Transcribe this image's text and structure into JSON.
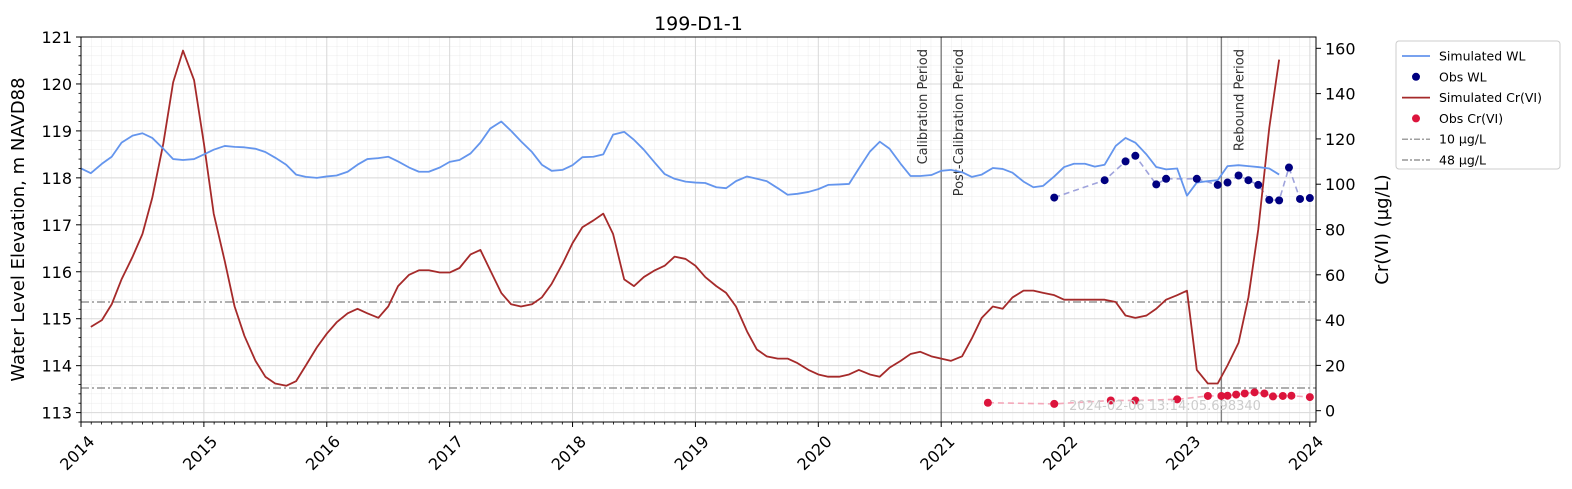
{
  "chart_data": {
    "type": "line",
    "title": "199-D1-1",
    "ylabel": "Water Level Elevation, m NAVD88",
    "y2label": "Cr(VI) (µg/L)",
    "xlim": [
      2014.0,
      2024.05
    ],
    "ylim": [
      112.8,
      121.0
    ],
    "y2lim": [
      -5,
      165
    ],
    "xticks": [
      2014,
      2015,
      2016,
      2017,
      2018,
      2019,
      2020,
      2021,
      2022,
      2023,
      2024
    ],
    "yticks": [
      113,
      114,
      115,
      116,
      117,
      118,
      119,
      120,
      121
    ],
    "y2ticks": [
      0,
      20,
      40,
      60,
      80,
      100,
      120,
      140,
      160
    ],
    "colors": {
      "sim_wl": "#6495ED",
      "obs_wl": "#000080",
      "sim_cr": "#A52A2A",
      "obs_cr": "#DC143C",
      "obs_wl_link": "#9FA3DC",
      "obs_cr_link": "#F4A8BA",
      "ref_line": "#808080",
      "period_line": "#808080"
    },
    "period_lines": [
      {
        "x": 2021.0,
        "label": "Calibration Period",
        "side": "left"
      },
      {
        "x": 2021.0,
        "label": "Post-Calibration Period",
        "side": "right"
      },
      {
        "x": 2023.28,
        "label": "Rebound Period",
        "side": "right"
      }
    ],
    "reference_lines": [
      {
        "value": 10,
        "label": "10 µg/L"
      },
      {
        "value": 48,
        "label": "48 µg/L"
      }
    ],
    "watermark": "2024-02-06 13:14:05.698340",
    "legend": [
      "Simulated WL",
      "Obs WL",
      "Simulated Cr(VI)",
      "Obs Cr(VI)",
      "10 µg/L",
      "48 µg/L"
    ],
    "series": [
      {
        "name": "Simulated WL",
        "axis": "left",
        "x": [
          2014.0,
          2014.08,
          2014.17,
          2014.25,
          2014.33,
          2014.42,
          2014.5,
          2014.58,
          2014.67,
          2014.75,
          2014.83,
          2014.92,
          2015.0,
          2015.08,
          2015.17,
          2015.25,
          2015.33,
          2015.42,
          2015.5,
          2015.58,
          2015.67,
          2015.75,
          2015.83,
          2015.92,
          2016.0,
          2016.08,
          2016.17,
          2016.25,
          2016.33,
          2016.42,
          2016.5,
          2016.58,
          2016.67,
          2016.75,
          2016.83,
          2016.92,
          2017.0,
          2017.08,
          2017.17,
          2017.25,
          2017.33,
          2017.42,
          2017.5,
          2017.58,
          2017.67,
          2017.75,
          2017.83,
          2017.92,
          2018.0,
          2018.08,
          2018.17,
          2018.25,
          2018.33,
          2018.42,
          2018.5,
          2018.58,
          2018.67,
          2018.75,
          2018.83,
          2018.92,
          2019.0,
          2019.08,
          2019.17,
          2019.25,
          2019.33,
          2019.42,
          2019.5,
          2019.58,
          2019.67,
          2019.75,
          2019.83,
          2019.92,
          2020.0,
          2020.08,
          2020.17,
          2020.25,
          2020.33,
          2020.42,
          2020.5,
          2020.58,
          2020.67,
          2020.75,
          2020.83,
          2020.92,
          2021.0,
          2021.08,
          2021.17,
          2021.25,
          2021.33,
          2021.42,
          2021.5,
          2021.58,
          2021.67,
          2021.75,
          2021.83,
          2021.92,
          2022.0,
          2022.08,
          2022.17,
          2022.25,
          2022.33,
          2022.42,
          2022.5,
          2022.58,
          2022.67,
          2022.75,
          2022.83,
          2022.92,
          2023.0,
          2023.08,
          2023.17,
          2023.25,
          2023.33,
          2023.42,
          2023.5,
          2023.58,
          2023.67,
          2023.75
        ],
        "values": [
          118.2,
          118.1,
          118.3,
          118.45,
          118.75,
          118.9,
          118.95,
          118.85,
          118.62,
          118.4,
          118.38,
          118.4,
          118.5,
          118.6,
          118.68,
          118.66,
          118.65,
          118.62,
          118.55,
          118.43,
          118.28,
          118.07,
          118.02,
          118.0,
          118.03,
          118.05,
          118.13,
          118.28,
          118.4,
          118.42,
          118.45,
          118.35,
          118.22,
          118.13,
          118.13,
          118.22,
          118.34,
          118.38,
          118.52,
          118.75,
          119.05,
          119.2,
          119.0,
          118.78,
          118.55,
          118.28,
          118.15,
          118.17,
          118.27,
          118.44,
          118.45,
          118.5,
          118.92,
          118.98,
          118.81,
          118.6,
          118.32,
          118.08,
          117.98,
          117.92,
          117.9,
          117.89,
          117.8,
          117.78,
          117.93,
          118.03,
          117.98,
          117.93,
          117.78,
          117.64,
          117.66,
          117.7,
          117.76,
          117.85,
          117.86,
          117.87,
          118.2,
          118.56,
          118.77,
          118.62,
          118.3,
          118.04,
          118.04,
          118.06,
          118.15,
          118.17,
          118.12,
          118.02,
          118.07,
          118.21,
          118.19,
          118.11,
          117.92,
          117.8,
          117.83,
          118.03,
          118.23,
          118.3,
          118.3,
          118.24,
          118.28,
          118.68,
          118.85,
          118.75,
          118.5,
          118.23,
          118.18,
          118.2,
          117.62,
          117.9,
          117.93,
          117.95,
          118.25,
          118.27,
          118.25,
          118.23,
          118.2,
          118.07
        ]
      },
      {
        "name": "Obs WL",
        "axis": "left",
        "x": [
          2021.92,
          2022.33,
          2022.5,
          2022.58,
          2022.75,
          2022.83,
          2023.08,
          2023.25,
          2023.33,
          2023.42,
          2023.5,
          2023.58,
          2023.67,
          2023.75,
          2023.83,
          2023.92,
          2024.0
        ],
        "values": [
          117.58,
          117.95,
          118.35,
          118.47,
          117.86,
          117.98,
          117.98,
          117.85,
          117.9,
          118.05,
          117.95,
          117.85,
          117.53,
          117.52,
          118.22,
          117.55,
          117.57
        ]
      },
      {
        "name": "Simulated Cr(VI)",
        "axis": "right",
        "x": [
          2014.08,
          2014.17,
          2014.25,
          2014.33,
          2014.42,
          2014.5,
          2014.58,
          2014.67,
          2014.75,
          2014.83,
          2014.92,
          2015.0,
          2015.08,
          2015.17,
          2015.25,
          2015.33,
          2015.42,
          2015.5,
          2015.58,
          2015.67,
          2015.75,
          2015.83,
          2015.92,
          2016.0,
          2016.08,
          2016.17,
          2016.25,
          2016.33,
          2016.42,
          2016.5,
          2016.58,
          2016.67,
          2016.75,
          2016.83,
          2016.92,
          2017.0,
          2017.08,
          2017.17,
          2017.25,
          2017.33,
          2017.42,
          2017.5,
          2017.58,
          2017.67,
          2017.75,
          2017.83,
          2017.92,
          2018.0,
          2018.08,
          2018.17,
          2018.25,
          2018.33,
          2018.42,
          2018.5,
          2018.58,
          2018.67,
          2018.75,
          2018.83,
          2018.92,
          2019.0,
          2019.08,
          2019.17,
          2019.25,
          2019.33,
          2019.42,
          2019.5,
          2019.58,
          2019.67,
          2019.75,
          2019.83,
          2019.92,
          2020.0,
          2020.08,
          2020.17,
          2020.25,
          2020.33,
          2020.42,
          2020.5,
          2020.58,
          2020.67,
          2020.75,
          2020.83,
          2020.92,
          2021.0,
          2021.08,
          2021.17,
          2021.25,
          2021.33,
          2021.42,
          2021.5,
          2021.58,
          2021.67,
          2021.75,
          2021.83,
          2021.92,
          2022.0,
          2022.08,
          2022.17,
          2022.25,
          2022.33,
          2022.42,
          2022.5,
          2022.58,
          2022.67,
          2022.75,
          2022.83,
          2022.92,
          2023.0,
          2023.08,
          2023.17,
          2023.25,
          2023.33,
          2023.42,
          2023.5,
          2023.58,
          2023.67,
          2023.75
        ],
        "values": [
          37,
          40,
          47,
          58,
          68,
          78,
          94,
          118,
          145,
          159,
          146,
          118,
          87,
          66,
          46,
          33,
          22,
          15,
          12,
          11,
          13,
          20,
          28,
          34,
          39,
          43,
          45,
          43,
          41,
          46,
          55,
          60,
          62,
          62,
          61,
          61,
          63,
          69,
          71,
          62,
          52,
          47,
          46,
          47,
          50,
          56,
          65,
          74,
          81,
          84,
          87,
          78,
          58,
          55,
          59,
          62,
          64,
          68,
          67,
          64,
          59,
          55,
          52,
          46,
          35,
          27,
          24,
          23,
          23,
          21,
          18,
          16,
          15,
          15,
          16,
          18,
          16,
          15,
          19,
          22,
          25,
          26,
          24,
          23,
          22,
          24,
          32,
          41,
          46,
          45,
          50,
          53,
          53,
          52,
          51,
          49,
          49,
          49,
          49,
          49,
          48,
          42,
          41,
          42,
          45,
          49,
          51,
          53,
          18,
          12,
          12,
          20,
          30,
          50,
          80,
          125,
          155
        ]
      },
      {
        "name": "Obs Cr(VI)",
        "axis": "right",
        "x": [
          2021.38,
          2021.92,
          2022.38,
          2022.58,
          2022.92,
          2023.17,
          2023.28,
          2023.33,
          2023.4,
          2023.47,
          2023.55,
          2023.63,
          2023.7,
          2023.78,
          2023.85,
          2024.0
        ],
        "values": [
          3.5,
          3.0,
          4.5,
          4.5,
          5.0,
          6.5,
          6.5,
          6.6,
          7.1,
          7.6,
          8.1,
          7.6,
          6.3,
          6.5,
          6.6,
          6.0
        ]
      }
    ]
  }
}
